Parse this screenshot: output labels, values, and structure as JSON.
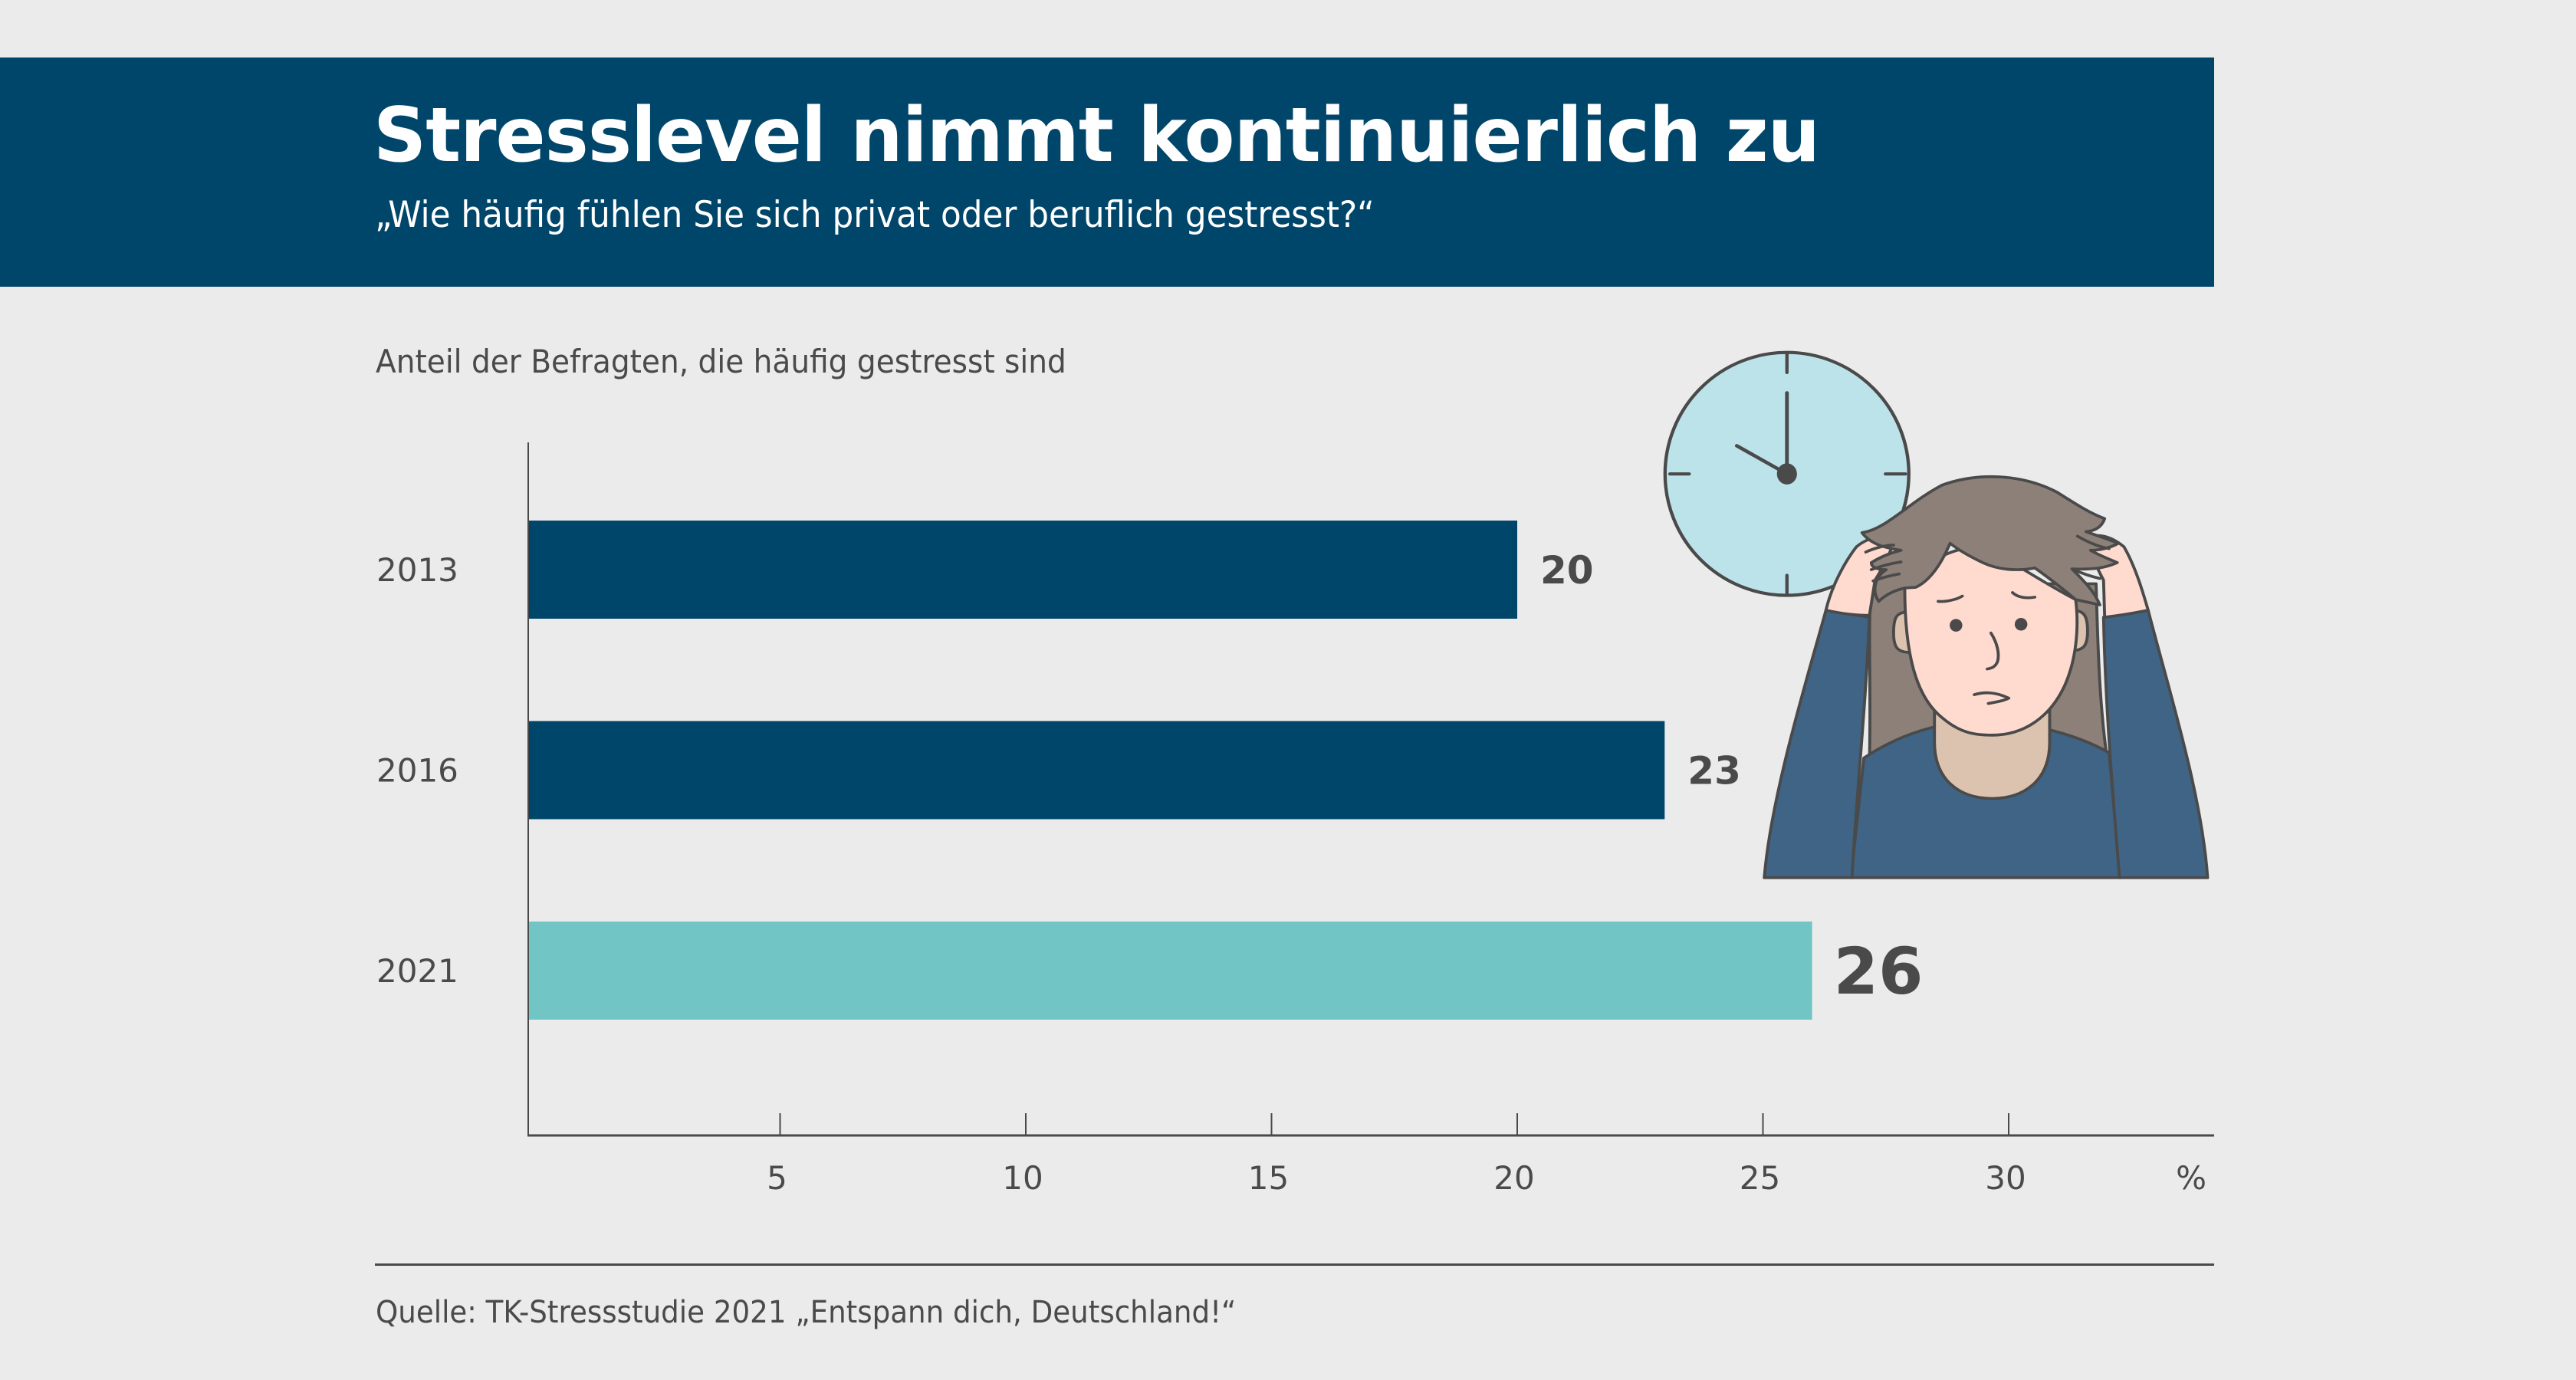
{
  "header": {
    "title": "Stresslevel nimmt kontinuierlich zu",
    "subtitle": "„Wie häufig fühlen Sie sich privat oder beruflich gestresst?“"
  },
  "axis_caption": "Anteil der Befragten, die häufig gestresst sind",
  "source": "Quelle: TK-Stressstudie 2021 „Entspann dich, Deutschland!“",
  "colors": {
    "header_bg": "#00466a",
    "page_bg": "#ebebeb",
    "bar_past": "#00466a",
    "bar_highlight": "#72c5c5",
    "text": "#4a4a4a"
  },
  "illustration": {
    "description": "stressed woman holding her head with a wall clock behind",
    "icons": [
      "clock-icon",
      "stressed-person-icon"
    ]
  },
  "chart_data": {
    "type": "bar",
    "orientation": "horizontal",
    "title": "Stresslevel nimmt kontinuierlich zu",
    "subtitle": "„Wie häufig fühlen Sie sich privat oder beruflich gestresst?“",
    "xlabel": "%",
    "ylabel": "",
    "caption": "Anteil der Befragten, die häufig gestresst sind",
    "categories": [
      "2013",
      "2016",
      "2021"
    ],
    "values": [
      20,
      23,
      26
    ],
    "value_labels": [
      "20",
      "23",
      "26"
    ],
    "highlight_index": 2,
    "xlim": [
      0,
      33
    ],
    "xticks": [
      5,
      10,
      15,
      20,
      25,
      30
    ],
    "xtick_labels": [
      "5",
      "10",
      "15",
      "20",
      "25",
      "30"
    ],
    "unit_label": "%",
    "grid": false,
    "legend": "none"
  }
}
